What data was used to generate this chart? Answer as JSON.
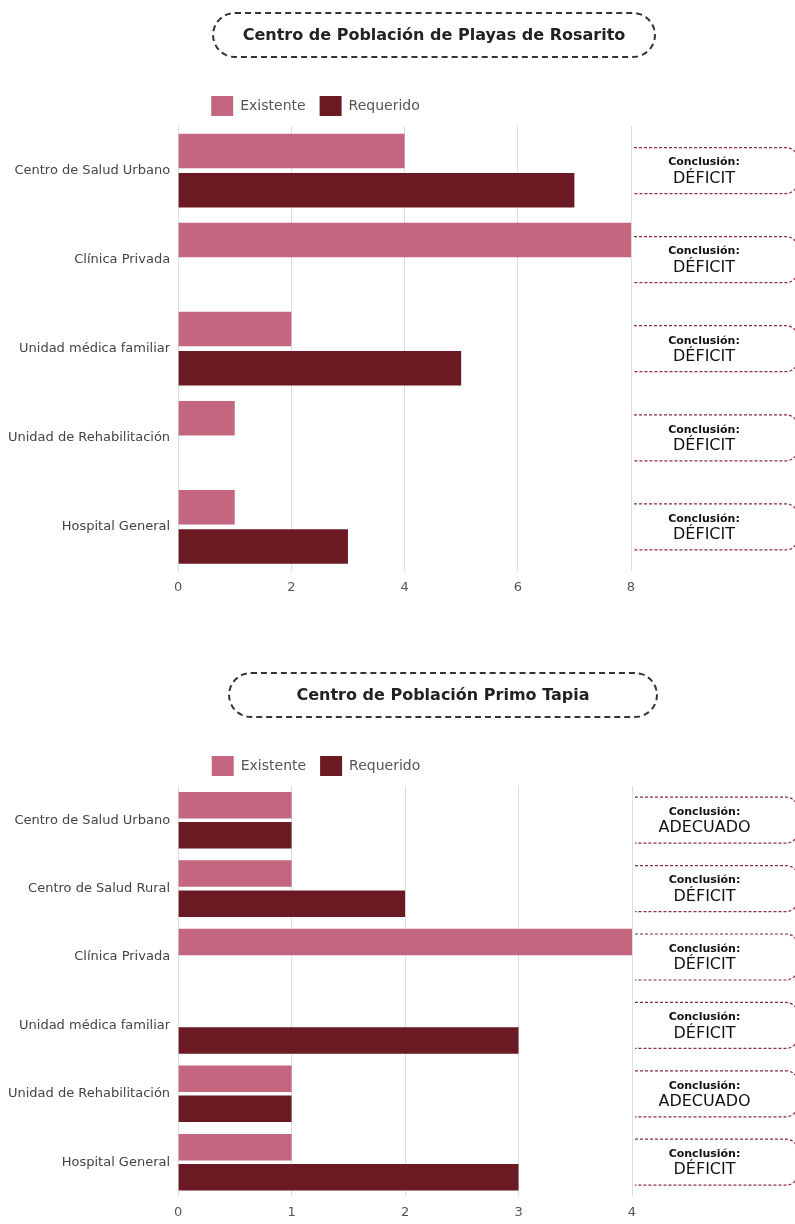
{
  "chart_data": [
    {
      "type": "bar",
      "orientation": "horizontal",
      "title": "Centro de Población de Playas de Rosarito",
      "categories": [
        "Centro de Salud Urbano",
        "Clínica Privada",
        "Unidad médica familiar",
        "Unidad de Rehabilitación",
        "Hospital General"
      ],
      "series": [
        {
          "name": "Existente",
          "color": "#c4667f",
          "values": [
            4,
            8,
            2,
            1,
            1
          ]
        },
        {
          "name": "Requerido",
          "color": "#6b1922",
          "values": [
            7,
            0,
            5,
            0,
            3
          ]
        }
      ],
      "xlim": [
        0,
        8
      ],
      "xticks": [
        0,
        2,
        4,
        6,
        8
      ],
      "grid": "x",
      "legend": "top",
      "annotations": [
        "Conclusión:\nDÉFICIT",
        "Conclusión:\nDÉFICIT",
        "Conclusión:\nDÉFICIT",
        "Conclusión:\nDÉFICIT",
        "Conclusión:\nDÉFICIT"
      ]
    },
    {
      "type": "bar",
      "orientation": "horizontal",
      "title": "Centro de Población Primo Tapia",
      "categories": [
        "Centro de Salud Urbano",
        "Centro de Salud Rural",
        "Clínica Privada",
        "Unidad médica familiar",
        "Unidad de Rehabilitación",
        "Hospital General"
      ],
      "series": [
        {
          "name": "Existente",
          "color": "#c4667f",
          "values": [
            1,
            1,
            4,
            0,
            1,
            1
          ]
        },
        {
          "name": "Requerido",
          "color": "#6b1922",
          "values": [
            1,
            2,
            0,
            3,
            1,
            3
          ]
        }
      ],
      "xlim": [
        0,
        4
      ],
      "xticks": [
        0,
        1,
        2,
        3,
        4
      ],
      "grid": "x",
      "legend": "top",
      "annotations": [
        "Conclusión:\nADECUADO",
        "Conclusión:\nDÉFICIT",
        "Conclusión:\nDÉFICIT",
        "Conclusión:\nDÉFICIT",
        "Conclusión:\nADECUADO",
        "Conclusión:\nDÉFICIT"
      ]
    }
  ]
}
